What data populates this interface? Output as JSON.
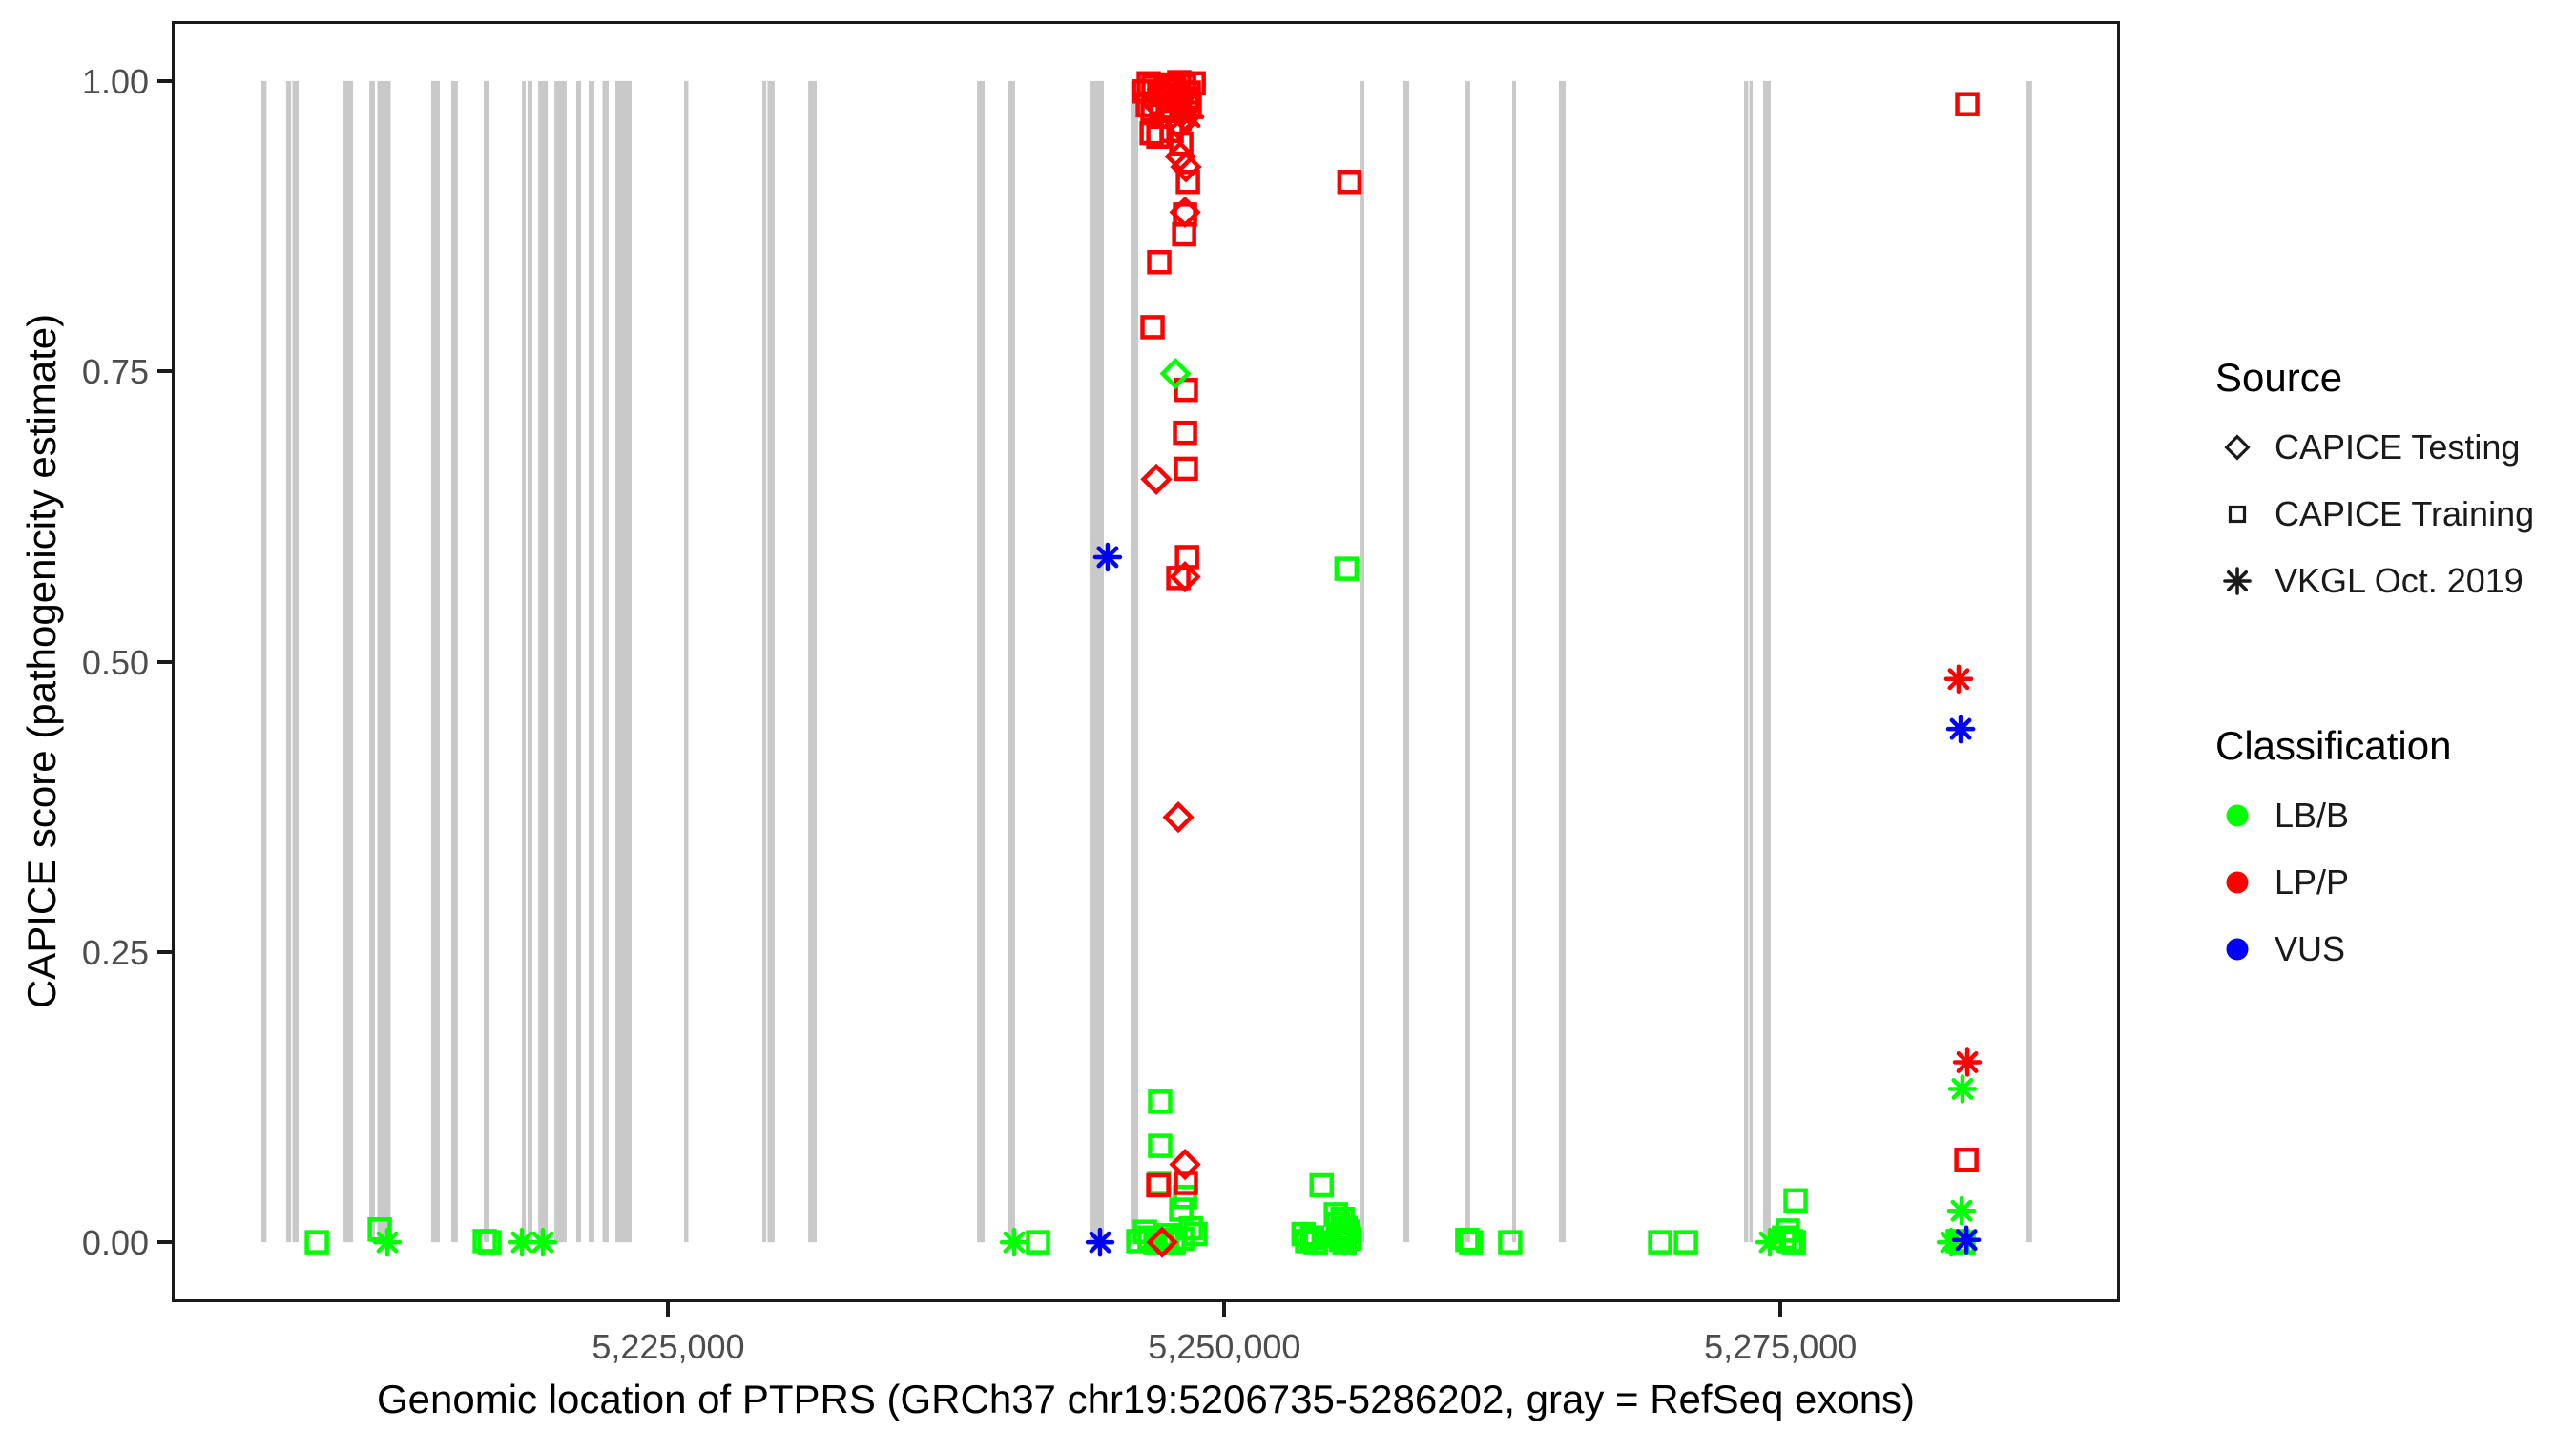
{
  "colors": {
    "background": "#ffffff",
    "panel_border": "#1a1a1a",
    "exon_gray": "#c9c9c9",
    "tick_text": "#4d4d4d",
    "class_colors": {
      "LB": "#00ff00",
      "LP": "#ff0000",
      "VUS": "#0000ff"
    }
  },
  "legend": {
    "source": {
      "title": "Source",
      "items": [
        {
          "label": "CAPICE Testing",
          "marker": "diamond-outline-icon"
        },
        {
          "label": "CAPICE Training",
          "marker": "square-outline-icon"
        },
        {
          "label": "VKGL Oct. 2019",
          "marker": "asterisk-icon"
        }
      ]
    },
    "classification": {
      "title": "Classification",
      "items": [
        {
          "label": "LB/B",
          "color_key": "LB"
        },
        {
          "label": "LP/P",
          "color_key": "LP"
        },
        {
          "label": "VUS",
          "color_key": "VUS"
        }
      ]
    }
  },
  "chart_data": {
    "type": "scatter",
    "xlabel": "Genomic location of PTPRS (GRCh37 chr19:5206735-5286202, gray = RefSeq exons)",
    "ylabel": "CAPICE score (pathogenicity estimate)",
    "x_axis": {
      "range": [
        5202762,
        5290175
      ],
      "ticks": [
        {
          "pos": 5225000,
          "label": "5,225,000"
        },
        {
          "pos": 5250000,
          "label": "5,250,000"
        },
        {
          "pos": 5275000,
          "label": "5,275,000"
        }
      ]
    },
    "y_axis": {
      "range": [
        -0.05,
        1.05
      ],
      "ticks": [
        {
          "value": 0.0,
          "label": "0.00"
        },
        {
          "value": 0.25,
          "label": "0.25"
        },
        {
          "value": 0.5,
          "label": "0.50"
        },
        {
          "value": 0.75,
          "label": "0.75"
        },
        {
          "value": 1.0,
          "label": "1.00"
        }
      ]
    },
    "grid": "off",
    "legend_position": "right",
    "source_shapes": {
      "te": "CAPICE Testing (open diamond)",
      "tr": "CAPICE Training (open square)",
      "vk": "VKGL Oct. 2019 (asterisk)"
    },
    "class_labels": {
      "LB": "LB/B",
      "LP": "LP/P",
      "VUS": "VUS"
    },
    "exons_note": "gray vertical bars = RefSeq exons, drawn from score 0 to 1",
    "exons": [
      [
        5206710,
        5206940
      ],
      [
        5207820,
        5208040
      ],
      [
        5208100,
        5208380
      ],
      [
        5210400,
        5210830
      ],
      [
        5211560,
        5211810
      ],
      [
        5211920,
        5212520
      ],
      [
        5214340,
        5214730
      ],
      [
        5215240,
        5215540
      ],
      [
        5216700,
        5216960
      ],
      [
        5218420,
        5218590
      ],
      [
        5218670,
        5218890
      ],
      [
        5219150,
        5219580
      ],
      [
        5219880,
        5220430
      ],
      [
        5220860,
        5221080
      ],
      [
        5221420,
        5221680
      ],
      [
        5222040,
        5222320
      ],
      [
        5222620,
        5223350
      ],
      [
        5225710,
        5225900
      ],
      [
        5229230,
        5229400
      ],
      [
        5229460,
        5229780
      ],
      [
        5231290,
        5231670
      ],
      [
        5238880,
        5239220
      ],
      [
        5240290,
        5240590
      ],
      [
        5243940,
        5244580
      ],
      [
        5245780,
        5246130
      ],
      [
        5256080,
        5256290
      ],
      [
        5258050,
        5258310
      ],
      [
        5260840,
        5261050
      ],
      [
        5262940,
        5263110
      ],
      [
        5265040,
        5265340
      ],
      [
        5273360,
        5273550
      ],
      [
        5273600,
        5273750
      ],
      [
        5274220,
        5274560
      ],
      [
        5286060,
        5286310
      ]
    ],
    "point_schema": [
      "genomic_position",
      "capice_score",
      "source(te|tr|vk)",
      "classification(LB|LP|VUS)"
    ],
    "points": [
      [
        5209200,
        0.0,
        "tr",
        "LB"
      ],
      [
        5212030,
        0.011,
        "tr",
        "LB"
      ],
      [
        5212370,
        0.0,
        "vk",
        "LB"
      ],
      [
        5216750,
        0.001,
        "tr",
        "LB"
      ],
      [
        5216960,
        0.0,
        "tr",
        "LB"
      ],
      [
        5218420,
        0.0,
        "vk",
        "LB"
      ],
      [
        5219360,
        0.0,
        "vk",
        "LB"
      ],
      [
        5240550,
        0.0,
        "vk",
        "LB"
      ],
      [
        5241620,
        0.0,
        "tr",
        "LB"
      ],
      [
        5244410,
        0.0,
        "vk",
        "VUS"
      ],
      [
        5246130,
        0.001,
        "tr",
        "LB"
      ],
      [
        5246430,
        0.009,
        "tr",
        "LB"
      ],
      [
        5246640,
        0.004,
        "tr",
        "LB"
      ],
      [
        5246900,
        0.0,
        "tr",
        "LB"
      ],
      [
        5247160,
        0.002,
        "tr",
        "LB"
      ],
      [
        5247420,
        0.006,
        "tr",
        "LB"
      ],
      [
        5247720,
        0.0,
        "tr",
        "LB"
      ],
      [
        5248100,
        0.003,
        "tr",
        "LB"
      ],
      [
        5248490,
        0.012,
        "tr",
        "LB"
      ],
      [
        5248700,
        0.007,
        "tr",
        "LB"
      ],
      [
        5247200,
        0.0,
        "te",
        "LP"
      ],
      [
        5248060,
        0.028,
        "tr",
        "LB"
      ],
      [
        5248230,
        0.039,
        "tr",
        "LB"
      ],
      [
        5247070,
        0.051,
        "tr",
        "LB"
      ],
      [
        5247030,
        0.049,
        "tr",
        "LP"
      ],
      [
        5248270,
        0.051,
        "tr",
        "LP"
      ],
      [
        5248230,
        0.067,
        "te",
        "LP"
      ],
      [
        5247110,
        0.083,
        "tr",
        "LB"
      ],
      [
        5247110,
        0.121,
        "tr",
        "LB"
      ],
      [
        5253560,
        0.007,
        "tr",
        "LB"
      ],
      [
        5253720,
        0.001,
        "tr",
        "LB"
      ],
      [
        5253940,
        0.004,
        "tr",
        "LB"
      ],
      [
        5254110,
        0.0,
        "tr",
        "LB"
      ],
      [
        5254370,
        0.049,
        "tr",
        "LB"
      ],
      [
        5255010,
        0.024,
        "tr",
        "LB"
      ],
      [
        5255100,
        0.016,
        "tr",
        "LB"
      ],
      [
        5255310,
        0.02,
        "tr",
        "LB"
      ],
      [
        5255440,
        0.012,
        "tr",
        "LB"
      ],
      [
        5255140,
        0.006,
        "tr",
        "LB"
      ],
      [
        5255530,
        0.009,
        "tr",
        "LB"
      ],
      [
        5255230,
        0.002,
        "tr",
        "LB"
      ],
      [
        5255400,
        0.0,
        "tr",
        "LB"
      ],
      [
        5255610,
        0.003,
        "tr",
        "LB"
      ],
      [
        5260920,
        0.002,
        "tr",
        "LB"
      ],
      [
        5261090,
        0.0,
        "tr",
        "LB"
      ],
      [
        5262850,
        0.0,
        "tr",
        "LB"
      ],
      [
        5269590,
        0.0,
        "tr",
        "LB"
      ],
      [
        5270750,
        0.0,
        "tr",
        "LB"
      ],
      [
        5274520,
        0.0,
        "vk",
        "LB"
      ],
      [
        5275160,
        0.004,
        "tr",
        "LB"
      ],
      [
        5275330,
        0.01,
        "tr",
        "LB"
      ],
      [
        5275480,
        0.001,
        "tr",
        "LB"
      ],
      [
        5275600,
        0.0,
        "tr",
        "LB"
      ],
      [
        5275680,
        0.036,
        "tr",
        "LB"
      ],
      [
        5282670,
        0.0,
        "vk",
        "LB"
      ],
      [
        5282970,
        0.001,
        "tr",
        "LB"
      ],
      [
        5283230,
        0.0,
        "tr",
        "LB"
      ],
      [
        5283360,
        0.002,
        "vk",
        "VUS"
      ],
      [
        5283140,
        0.027,
        "vk",
        "LB"
      ],
      [
        5283360,
        0.071,
        "tr",
        "LP"
      ],
      [
        5283180,
        0.132,
        "vk",
        "LB"
      ],
      [
        5283400,
        0.155,
        "vk",
        "LP"
      ],
      [
        5283100,
        0.442,
        "vk",
        "VUS"
      ],
      [
        5283010,
        0.485,
        "vk",
        "LP"
      ],
      [
        5283400,
        0.98,
        "tr",
        "LP"
      ],
      [
        5244750,
        0.59,
        "vk",
        "VUS"
      ],
      [
        5255490,
        0.58,
        "tr",
        "LB"
      ],
      [
        5247930,
        0.366,
        "te",
        "LP"
      ],
      [
        5248320,
        0.59,
        "tr",
        "LP"
      ],
      [
        5248230,
        0.573,
        "te",
        "LP"
      ],
      [
        5247930,
        0.572,
        "tr",
        "LP"
      ],
      [
        5248270,
        0.666,
        "tr",
        "LP"
      ],
      [
        5246940,
        0.657,
        "te",
        "LP"
      ],
      [
        5248230,
        0.697,
        "tr",
        "LP"
      ],
      [
        5248270,
        0.734,
        "tr",
        "LP"
      ],
      [
        5247800,
        0.748,
        "te",
        "LB"
      ],
      [
        5246770,
        0.788,
        "tr",
        "LP"
      ],
      [
        5247070,
        0.844,
        "tr",
        "LP"
      ],
      [
        5248190,
        0.868,
        "tr",
        "LP"
      ],
      [
        5248230,
        0.885,
        "tr",
        "LP"
      ],
      [
        5248230,
        0.887,
        "te",
        "LP"
      ],
      [
        5248360,
        0.913,
        "tr",
        "LP"
      ],
      [
        5255620,
        0.913,
        "tr",
        "LP"
      ],
      [
        5248270,
        0.926,
        "te",
        "LP"
      ],
      [
        5248020,
        0.935,
        "te",
        "LP"
      ],
      [
        5248060,
        0.946,
        "tr",
        "LP"
      ],
      [
        5246730,
        0.955,
        "tr",
        "LP"
      ],
      [
        5247030,
        0.952,
        "tr",
        "LP"
      ],
      [
        5247630,
        0.957,
        "tr",
        "LP"
      ],
      [
        5247970,
        0.962,
        "te",
        "LP"
      ],
      [
        5246860,
        0.982,
        "te",
        "LP"
      ],
      [
        5247200,
        0.993,
        "te",
        "LP"
      ],
      [
        5248020,
        0.989,
        "te",
        "LP"
      ],
      [
        5247670,
        0.971,
        "te",
        "LP"
      ],
      [
        5248230,
        0.969,
        "te",
        "LP"
      ],
      [
        5246390,
        0.991,
        "tr",
        "LP"
      ],
      [
        5246600,
        0.998,
        "tr",
        "LP"
      ],
      [
        5246810,
        0.995,
        "tr",
        "LP"
      ],
      [
        5247070,
        0.988,
        "tr",
        "LP"
      ],
      [
        5247330,
        0.997,
        "tr",
        "LP"
      ],
      [
        5247540,
        0.994,
        "tr",
        "LP"
      ],
      [
        5247760,
        0.992,
        "tr",
        "LP"
      ],
      [
        5247970,
        0.999,
        "tr",
        "LP"
      ],
      [
        5248190,
        0.996,
        "tr",
        "LP"
      ],
      [
        5248400,
        0.99,
        "tr",
        "LP"
      ],
      [
        5248620,
        0.998,
        "tr",
        "LP"
      ],
      [
        5247460,
        0.987,
        "tr",
        "LP"
      ],
      [
        5247840,
        0.983,
        "tr",
        "LP"
      ],
      [
        5248320,
        0.985,
        "tr",
        "LP"
      ],
      [
        5246560,
        0.979,
        "tr",
        "LP"
      ],
      [
        5246770,
        0.975,
        "tr",
        "LP"
      ],
      [
        5247160,
        0.977,
        "tr",
        "LP"
      ],
      [
        5247630,
        0.976,
        "tr",
        "LP"
      ],
      [
        5248440,
        0.978,
        "tr",
        "LP"
      ],
      [
        5248140,
        0.977,
        "vk",
        "LP"
      ],
      [
        5248440,
        0.969,
        "vk",
        "LP"
      ]
    ]
  }
}
